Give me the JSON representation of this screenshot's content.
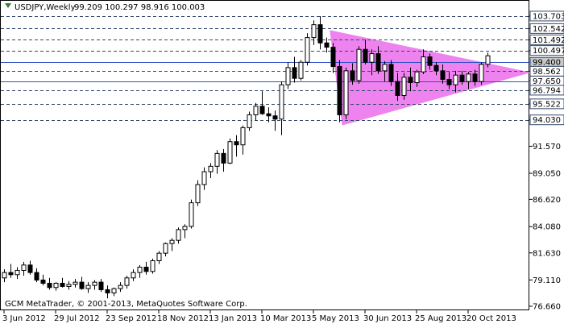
{
  "chart_data": {
    "type": "candlestick",
    "title": "USDJPY,Weekly",
    "footer": "GCM MetaTrader, © 2001-2013, MetaQuotes Software Corp.",
    "categories": [
      "3 Jun 2012",
      null,
      null,
      null,
      null,
      null,
      null,
      null,
      "29 Jul 2012",
      null,
      null,
      null,
      null,
      null,
      null,
      null,
      "23 Sep 2012",
      null,
      null,
      null,
      null,
      null,
      null,
      null,
      "18 Nov 2012",
      null,
      null,
      null,
      null,
      null,
      null,
      null,
      "13 Jan 2013",
      null,
      null,
      null,
      null,
      null,
      null,
      null,
      "10 Mar 2013",
      null,
      null,
      null,
      null,
      null,
      null,
      null,
      "5 May 2013",
      null,
      null,
      null,
      null,
      null,
      null,
      null,
      "30 Jun 2013",
      null,
      null,
      null,
      null,
      null,
      null,
      null,
      "25 Aug 2013",
      null,
      null,
      null,
      null,
      null,
      null,
      null,
      "20 Oct 2013",
      null,
      null,
      null
    ],
    "open": [
      79.3,
      79.8,
      79.6,
      80.0,
      80.5,
      79.8,
      79.1,
      78.8,
      78.4,
      78.8,
      78.5,
      78.7,
      78.9,
      78.3,
      78.6,
      78.9,
      78.2,
      77.9,
      78.3,
      78.6,
      79.3,
      79.8,
      80.3,
      79.9,
      80.9,
      81.6,
      82.5,
      82.8,
      83.8,
      84.1,
      86.3,
      88.0,
      89.2,
      89.7,
      90.9,
      90.0,
      92.0,
      91.7,
      93.3,
      94.5,
      95.3,
      94.6,
      94.4,
      94.1,
      97.3,
      98.9,
      97.9,
      99.4,
      101.7,
      102.9,
      101.2,
      100.8,
      99.0,
      94.5,
      98.6,
      97.7,
      100.6,
      99.4,
      100.2,
      98.6,
      99.2,
      97.6,
      96.3,
      98.0,
      97.5,
      98.5,
      99.9,
      99.1,
      98.6,
      97.8,
      97.3,
      98.2,
      97.6,
      98.3,
      97.6,
      99.209
    ],
    "high": [
      80.1,
      80.6,
      80.3,
      80.8,
      80.9,
      80.2,
      79.6,
      79.3,
      78.9,
      79.3,
      79.0,
      79.2,
      79.4,
      78.9,
      79.1,
      79.2,
      78.6,
      78.4,
      78.9,
      79.5,
      80.1,
      80.5,
      80.8,
      81.1,
      81.8,
      82.6,
      83.0,
      84.0,
      84.3,
      86.6,
      88.4,
      89.6,
      90.0,
      91.2,
      91.3,
      92.3,
      92.6,
      93.5,
      94.8,
      95.6,
      96.7,
      95.2,
      94.9,
      97.6,
      99.4,
      99.9,
      99.6,
      102.1,
      103.3,
      103.7,
      101.7,
      101.2,
      99.6,
      98.9,
      99.3,
      100.9,
      101.5,
      100.6,
      100.9,
      99.5,
      99.6,
      98.4,
      98.4,
      98.9,
      98.7,
      100.6,
      100.2,
      99.4,
      99.2,
      98.5,
      98.6,
      98.6,
      98.5,
      98.7,
      99.4,
      100.297
    ],
    "low": [
      78.9,
      79.3,
      79.2,
      79.5,
      79.6,
      78.9,
      78.6,
      78.2,
      78.1,
      78.4,
      78.2,
      78.4,
      78.2,
      77.9,
      78.2,
      78.0,
      77.4,
      77.6,
      78.0,
      78.3,
      79.0,
      79.3,
      79.6,
      79.7,
      80.6,
      81.3,
      81.8,
      82.5,
      83.0,
      83.9,
      86.0,
      87.5,
      88.6,
      89.0,
      89.2,
      89.9,
      90.6,
      90.8,
      93.0,
      94.0,
      94.5,
      93.8,
      93.0,
      92.6,
      96.9,
      97.5,
      97.7,
      99.1,
      101.0,
      100.6,
      100.3,
      98.4,
      93.8,
      94.1,
      97.3,
      97.4,
      99.2,
      98.2,
      98.3,
      97.6,
      97.2,
      95.8,
      95.9,
      96.7,
      97.1,
      98.3,
      98.7,
      98.2,
      97.4,
      96.9,
      96.6,
      97.3,
      96.9,
      97.2,
      97.3,
      98.916
    ],
    "close": [
      79.8,
      79.6,
      80.0,
      80.5,
      79.8,
      79.1,
      78.8,
      78.4,
      78.8,
      78.5,
      78.7,
      78.9,
      78.3,
      78.6,
      78.9,
      78.2,
      77.9,
      78.3,
      78.6,
      79.3,
      79.8,
      80.3,
      79.9,
      80.9,
      81.6,
      82.5,
      82.8,
      83.8,
      84.1,
      86.3,
      88.0,
      89.2,
      89.7,
      90.9,
      90.0,
      92.0,
      91.7,
      93.3,
      94.5,
      95.3,
      94.6,
      94.4,
      94.1,
      97.3,
      98.9,
      97.9,
      99.4,
      101.7,
      102.9,
      101.2,
      100.8,
      99.0,
      94.5,
      98.6,
      97.7,
      100.6,
      99.4,
      100.2,
      98.6,
      99.2,
      97.6,
      96.3,
      98.0,
      97.5,
      98.5,
      99.9,
      99.1,
      98.6,
      97.8,
      97.3,
      98.2,
      97.6,
      98.3,
      97.6,
      99.2,
      100.003
    ],
    "up_color": "#ffffff",
    "down_color": "#000000",
    "ylim": [
      76.28,
      105.2
    ],
    "yticks": [
      103.703,
      102.542,
      101.492,
      100.497,
      {
        "value": 99.4,
        "label": "99.400"
      },
      98.562,
      {
        "value": 97.65,
        "label": "97.650"
      },
      96.794,
      95.522,
      {
        "value": 94.03,
        "label": "94.030"
      },
      {
        "value": 91.57,
        "label": "91.570"
      },
      {
        "value": 89.05,
        "label": "89.050"
      },
      {
        "value": 86.62,
        "label": "86.620"
      },
      {
        "value": 84.08,
        "label": "84.080"
      },
      {
        "value": 81.63,
        "label": "81.630"
      },
      {
        "value": 79.11,
        "label": "79.110"
      },
      {
        "value": 76.66,
        "label": "76.660"
      }
    ],
    "levels": [
      {
        "value": 103.703,
        "style": "dashed"
      },
      {
        "value": 102.542,
        "style": "dashed"
      },
      {
        "value": 101.492,
        "style": "dashed"
      },
      {
        "value": 100.497,
        "style": "dashed"
      },
      {
        "value": 99.4,
        "style": "solid"
      },
      {
        "value": 98.562,
        "style": "dashed"
      },
      {
        "value": 97.65,
        "style": "solid"
      },
      {
        "value": 96.794,
        "style": "dashed"
      },
      {
        "value": 95.522,
        "style": "dashed"
      },
      {
        "value": 94.03,
        "style": "dashed"
      }
    ],
    "triangle": {
      "color": "#ee82ee",
      "points": [
        {
          "x": 50.6,
          "y": 102.35
        },
        {
          "x": 81.5,
          "y": 98.44
        },
        {
          "x": 52.5,
          "y": 93.56
        }
      ]
    }
  }
}
